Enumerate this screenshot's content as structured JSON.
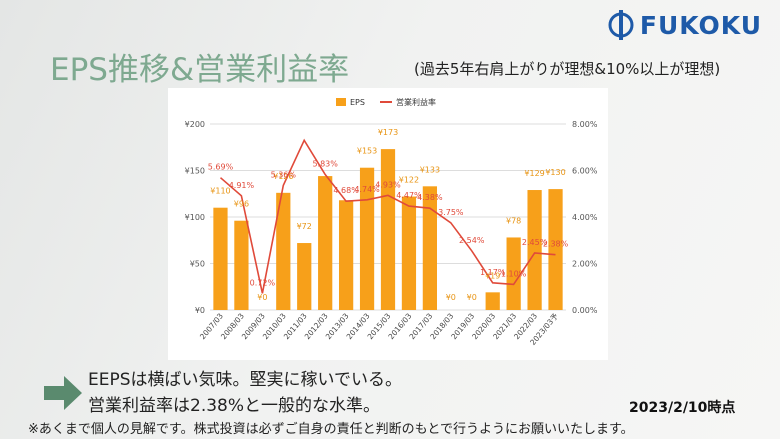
{
  "logo": {
    "text": "FUKOKU"
  },
  "header": {
    "title": "EPS推移&営業利益率",
    "subtitle": "(過去5年右肩上がりが理想&10%以上が理想)"
  },
  "comments": [
    "EEPSは横ばい気味。堅実に稼いでいる。",
    "営業利益率は2.38%と一般的な水準。"
  ],
  "as_of": "2023/2/10時点",
  "disclaimer": "※あくまで個人の見解です。株式投資は必ずご自身の責任と判断のもとで行うようにお願いいたします。",
  "colors": {
    "eps_bar": "#f7a01a",
    "margin_line": "#e04a3a",
    "title": "#7ea990",
    "logo": "#1e5aa8",
    "arrow": "#5a8a6e"
  },
  "chart_data": {
    "type": "bar",
    "categories": [
      "2007/03",
      "2008/03",
      "2009/03",
      "2010/03",
      "2011/03",
      "2012/03",
      "2013/03",
      "2014/03",
      "2015/03",
      "2016/03",
      "2017/03",
      "2018/03",
      "2019/03",
      "2020/03",
      "2021/03",
      "2022/03",
      "2023/03予"
    ],
    "series": [
      {
        "name": "EPS",
        "type": "bar",
        "axis": "left",
        "values": [
          110,
          96,
          0,
          126,
          72,
          144,
          118,
          153,
          173,
          122,
          133,
          0,
          0,
          19,
          78,
          129,
          130
        ],
        "labels": [
          "¥110",
          "¥96",
          "¥0",
          "¥126",
          "¥72",
          "",
          "",
          "¥153",
          "¥173",
          "¥122",
          "¥133",
          "¥0",
          "¥0",
          "¥19",
          "¥78",
          "¥129",
          "¥130"
        ]
      },
      {
        "name": "営業利益率",
        "type": "line",
        "axis": "right",
        "values": [
          5.69,
          4.91,
          0.72,
          5.36,
          7.3,
          5.83,
          4.68,
          4.74,
          4.93,
          4.47,
          4.38,
          3.75,
          2.54,
          1.17,
          1.1,
          2.45,
          2.38
        ],
        "labels": [
          "5.69%",
          "4.91%",
          "0.72%",
          "5.36%",
          "",
          "5.83%",
          "4.68%",
          "4.74%",
          "4.93%",
          "4.47%",
          "4.38%",
          "3.75%",
          "2.54%",
          "1.17%",
          "1.10%",
          "2.45%",
          "2.38%"
        ]
      }
    ],
    "y_left": {
      "ticks": [
        "¥0",
        "¥50",
        "¥100",
        "¥150",
        "¥200"
      ],
      "range": [
        0,
        200
      ]
    },
    "y_right": {
      "ticks": [
        "0.00%",
        "2.00%",
        "4.00%",
        "6.00%",
        "8.00%"
      ],
      "range": [
        0,
        8
      ]
    },
    "legend": {
      "position": "top"
    },
    "grid": true
  }
}
